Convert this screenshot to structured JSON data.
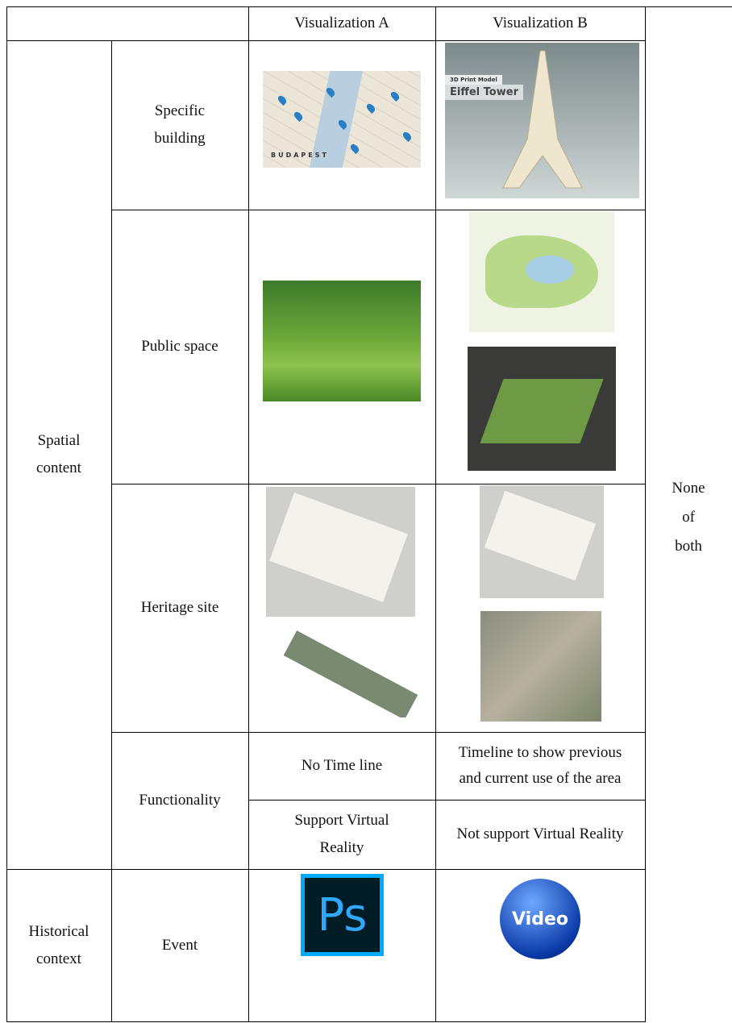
{
  "table": {
    "header": [
      "Visualization A",
      "Visualization B"
    ],
    "groups": [
      "Spatial content",
      "Historical context"
    ],
    "aspects": [
      "Specific building",
      "Public space",
      "Heritage site",
      "Functionality",
      "Event"
    ],
    "functionality": [
      [
        "No Time line",
        "Timeline to show previous and current use of the area"
      ],
      [
        "Support Virtual Reality",
        "Not support Virtual Reality"
      ]
    ],
    "last_column": "None of both",
    "images": {
      "map_label": "BUDAPEST",
      "eiffel_caption": [
        "3D Print Model",
        "Eiffel Tower"
      ],
      "ps_icon": "Ps",
      "video_icon": "Video"
    }
  }
}
